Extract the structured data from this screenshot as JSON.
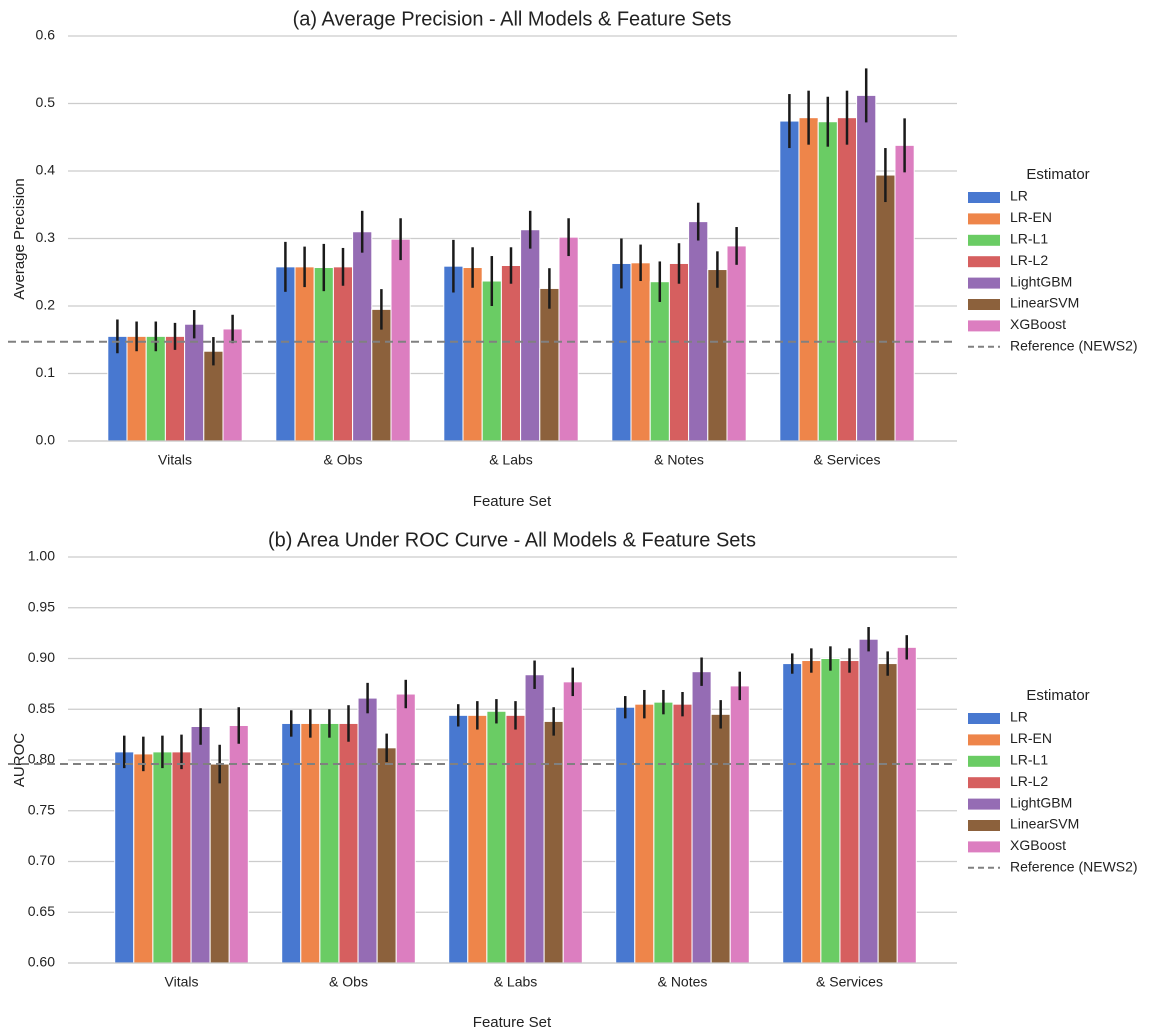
{
  "chart_data": [
    {
      "type": "bar",
      "title": "(a) Average Precision - All Models & Feature Sets",
      "x_label": "Feature Set",
      "y_label": "Average Precision",
      "categories": [
        "Vitals",
        "& Obs",
        "& Labs",
        "& Notes",
        "& Services"
      ],
      "ylim": [
        0,
        0.6
      ],
      "yticks": [
        {
          "value": 0,
          "label": "0.0"
        },
        0.1,
        0.2,
        0.3,
        0.4,
        0.5,
        0.6
      ],
      "grid": true,
      "legend_title": "Estimator",
      "legend_position": "right",
      "series": [
        {
          "name": "LR",
          "color": "#4878d0",
          "values": [
            0.155,
            0.258,
            0.259,
            0.263,
            0.474
          ],
          "errors": [
            0.025,
            0.037,
            0.039,
            0.037,
            0.04
          ]
        },
        {
          "name": "LR-EN",
          "color": "#ee854a",
          "values": [
            0.155,
            0.258,
            0.257,
            0.264,
            0.479
          ],
          "errors": [
            0.022,
            0.03,
            0.03,
            0.027,
            0.04
          ]
        },
        {
          "name": "LR-L1",
          "color": "#6acc64",
          "values": [
            0.155,
            0.257,
            0.237,
            0.236,
            0.473
          ],
          "errors": [
            0.022,
            0.035,
            0.037,
            0.03,
            0.037
          ]
        },
        {
          "name": "LR-L2",
          "color": "#d65f5f",
          "values": [
            0.155,
            0.258,
            0.26,
            0.263,
            0.479
          ],
          "errors": [
            0.02,
            0.028,
            0.027,
            0.03,
            0.04
          ]
        },
        {
          "name": "LightGBM",
          "color": "#956cb4",
          "values": [
            0.173,
            0.31,
            0.313,
            0.325,
            0.512
          ],
          "errors": [
            0.021,
            0.031,
            0.028,
            0.028,
            0.04
          ]
        },
        {
          "name": "LinearSVM",
          "color": "#8c613c",
          "values": [
            0.133,
            0.195,
            0.226,
            0.254,
            0.394
          ],
          "errors": [
            0.021,
            0.03,
            0.03,
            0.027,
            0.04
          ]
        },
        {
          "name": "XGBoost",
          "color": "#dc7ec0",
          "values": [
            0.166,
            0.299,
            0.302,
            0.289,
            0.438
          ],
          "errors": [
            0.021,
            0.031,
            0.028,
            0.028,
            0.04
          ]
        }
      ],
      "reference": {
        "name": "Reference (NEWS2)",
        "value": 0.147,
        "color": "#808080"
      }
    },
    {
      "type": "bar",
      "title": "(b) Area Under ROC Curve - All Models & Feature Sets",
      "x_label": "Feature Set",
      "y_label": "AUROC",
      "categories": [
        "Vitals",
        "& Obs",
        "& Labs",
        "& Notes",
        "& Services"
      ],
      "ylim": [
        0.6,
        1.0
      ],
      "yticks": [
        {
          "value": 0.6,
          "label": "0.60"
        },
        0.65,
        {
          "value": 0.7,
          "label": "0.70"
        },
        0.75,
        {
          "value": 0.8,
          "label": "0.80"
        },
        0.85,
        {
          "value": 0.9,
          "label": "0.90"
        },
        0.95,
        {
          "value": 1.0,
          "label": "1.00"
        }
      ],
      "grid": true,
      "legend_title": "Estimator",
      "legend_position": "right",
      "series": [
        {
          "name": "LR",
          "color": "#4878d0",
          "values": [
            0.808,
            0.836,
            0.844,
            0.852,
            0.895
          ],
          "errors": [
            0.016,
            0.013,
            0.011,
            0.011,
            0.01
          ]
        },
        {
          "name": "LR-EN",
          "color": "#ee854a",
          "values": [
            0.806,
            0.836,
            0.844,
            0.855,
            0.898
          ],
          "errors": [
            0.017,
            0.014,
            0.014,
            0.014,
            0.012
          ]
        },
        {
          "name": "LR-L1",
          "color": "#6acc64",
          "values": [
            0.808,
            0.836,
            0.848,
            0.857,
            0.9
          ],
          "errors": [
            0.016,
            0.014,
            0.012,
            0.012,
            0.012
          ]
        },
        {
          "name": "LR-L2",
          "color": "#d65f5f",
          "values": [
            0.808,
            0.836,
            0.844,
            0.855,
            0.898
          ],
          "errors": [
            0.017,
            0.018,
            0.014,
            0.012,
            0.012
          ]
        },
        {
          "name": "LightGBM",
          "color": "#956cb4",
          "values": [
            0.833,
            0.861,
            0.884,
            0.887,
            0.919
          ],
          "errors": [
            0.018,
            0.015,
            0.014,
            0.014,
            0.012
          ]
        },
        {
          "name": "LinearSVM",
          "color": "#8c613c",
          "values": [
            0.796,
            0.812,
            0.838,
            0.845,
            0.895
          ],
          "errors": [
            0.019,
            0.014,
            0.014,
            0.014,
            0.012
          ]
        },
        {
          "name": "XGBoost",
          "color": "#dc7ec0",
          "values": [
            0.834,
            0.865,
            0.877,
            0.873,
            0.911
          ],
          "errors": [
            0.018,
            0.014,
            0.014,
            0.014,
            0.012
          ]
        }
      ],
      "reference": {
        "name": "Reference (NEWS2)",
        "value": 0.796,
        "color": "#808080"
      }
    }
  ]
}
